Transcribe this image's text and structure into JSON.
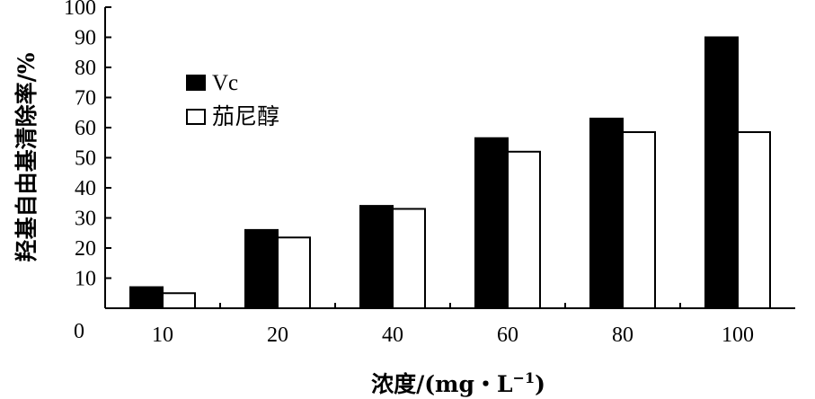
{
  "chart_data": {
    "type": "bar",
    "categories": [
      "10",
      "20",
      "40",
      "60",
      "80",
      "100"
    ],
    "series": [
      {
        "name": "Vc",
        "values": [
          7,
          26,
          34,
          56.5,
          63,
          90
        ],
        "color": "#000000"
      },
      {
        "name": "茄尼醇",
        "values": [
          5,
          23.5,
          33,
          52,
          58.5,
          58.5
        ],
        "color": "#ffffff"
      }
    ],
    "ylim": [
      0,
      100
    ],
    "yticks": [
      "0",
      "10",
      "20",
      "30",
      "40",
      "50",
      "60",
      "70",
      "80",
      "90",
      "100"
    ],
    "ylabel": "羟基自由基清除率/%",
    "xlabel_main": "浓度/(mg・L",
    "xlabel_sup": "−1",
    "xlabel_close": ")",
    "grid": false,
    "legend_position": "top-left"
  }
}
